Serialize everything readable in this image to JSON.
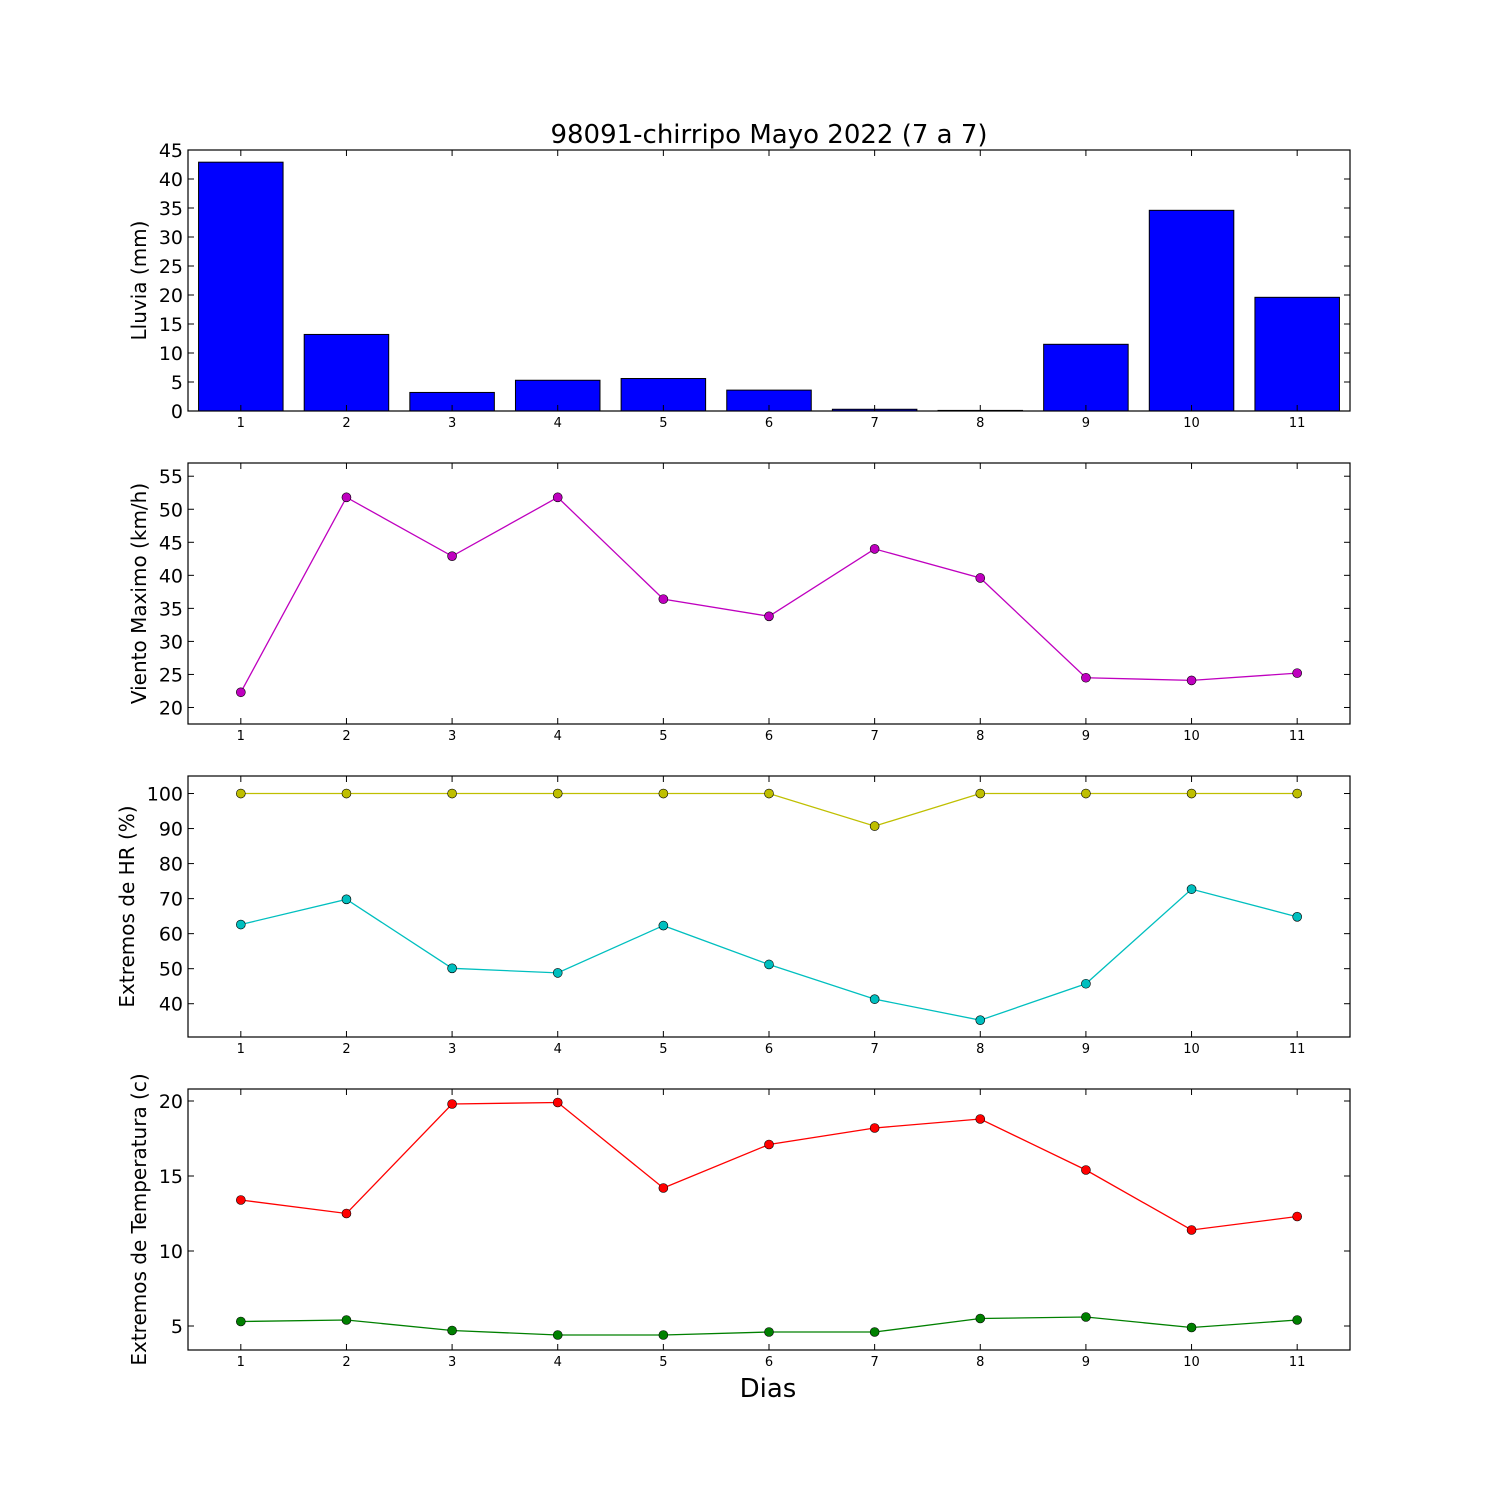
{
  "figure": {
    "title": "98091-chirripo Mayo 2022  (7 a 7)",
    "xlabel": "Dias"
  },
  "chart_data": [
    {
      "type": "bar",
      "ylabel": "Lluvia (mm)",
      "categories": [
        "1",
        "2",
        "3",
        "4",
        "5",
        "6",
        "7",
        "8",
        "9",
        "10",
        "11"
      ],
      "values": [
        42.9,
        13.2,
        3.2,
        5.3,
        5.6,
        3.6,
        0.3,
        0.1,
        11.5,
        34.6,
        19.6
      ],
      "ylim": [
        0,
        45
      ],
      "yticks": [
        0,
        5,
        10,
        15,
        20,
        25,
        30,
        35,
        40,
        45
      ],
      "color": "#0000ff"
    },
    {
      "type": "line",
      "ylabel": "Viento Maximo (km/h)",
      "x": [
        1,
        2,
        3,
        4,
        5,
        6,
        7,
        8,
        9,
        10,
        11
      ],
      "series": [
        {
          "values": [
            22.3,
            51.8,
            42.9,
            51.8,
            36.4,
            33.8,
            44.0,
            39.6,
            24.5,
            24.1,
            25.2
          ],
          "color": "#bf00bf"
        }
      ],
      "ylim": [
        17.5,
        57
      ],
      "yticks": [
        20,
        25,
        30,
        35,
        40,
        45,
        50,
        55
      ]
    },
    {
      "type": "line",
      "ylabel": "Extremos de HR (%)",
      "x": [
        1,
        2,
        3,
        4,
        5,
        6,
        7,
        8,
        9,
        10,
        11
      ],
      "series": [
        {
          "values": [
            100,
            100,
            100,
            100,
            100,
            100,
            90.7,
            100,
            100,
            100,
            100
          ],
          "color": "#bfbf00"
        },
        {
          "values": [
            62.6,
            69.8,
            50.1,
            48.8,
            62.3,
            51.2,
            41.3,
            35.3,
            45.7,
            72.7,
            64.8
          ],
          "color": "#00bfbf"
        }
      ],
      "ylim": [
        30.5,
        105
      ],
      "yticks": [
        40,
        50,
        60,
        70,
        80,
        90,
        100
      ]
    },
    {
      "type": "line",
      "ylabel": "Extremos de Temperatura (c)",
      "x": [
        1,
        2,
        3,
        4,
        5,
        6,
        7,
        8,
        9,
        10,
        11
      ],
      "series": [
        {
          "values": [
            13.4,
            12.5,
            19.8,
            19.9,
            14.2,
            17.1,
            18.2,
            18.8,
            15.4,
            11.4,
            12.3
          ],
          "color": "#ff0000"
        },
        {
          "values": [
            5.3,
            5.4,
            4.7,
            4.4,
            4.4,
            4.6,
            4.6,
            5.5,
            5.6,
            4.9,
            5.4
          ],
          "color": "#008000"
        }
      ],
      "ylim": [
        3.4,
        20.8
      ],
      "yticks": [
        5,
        10,
        15,
        20
      ]
    }
  ]
}
